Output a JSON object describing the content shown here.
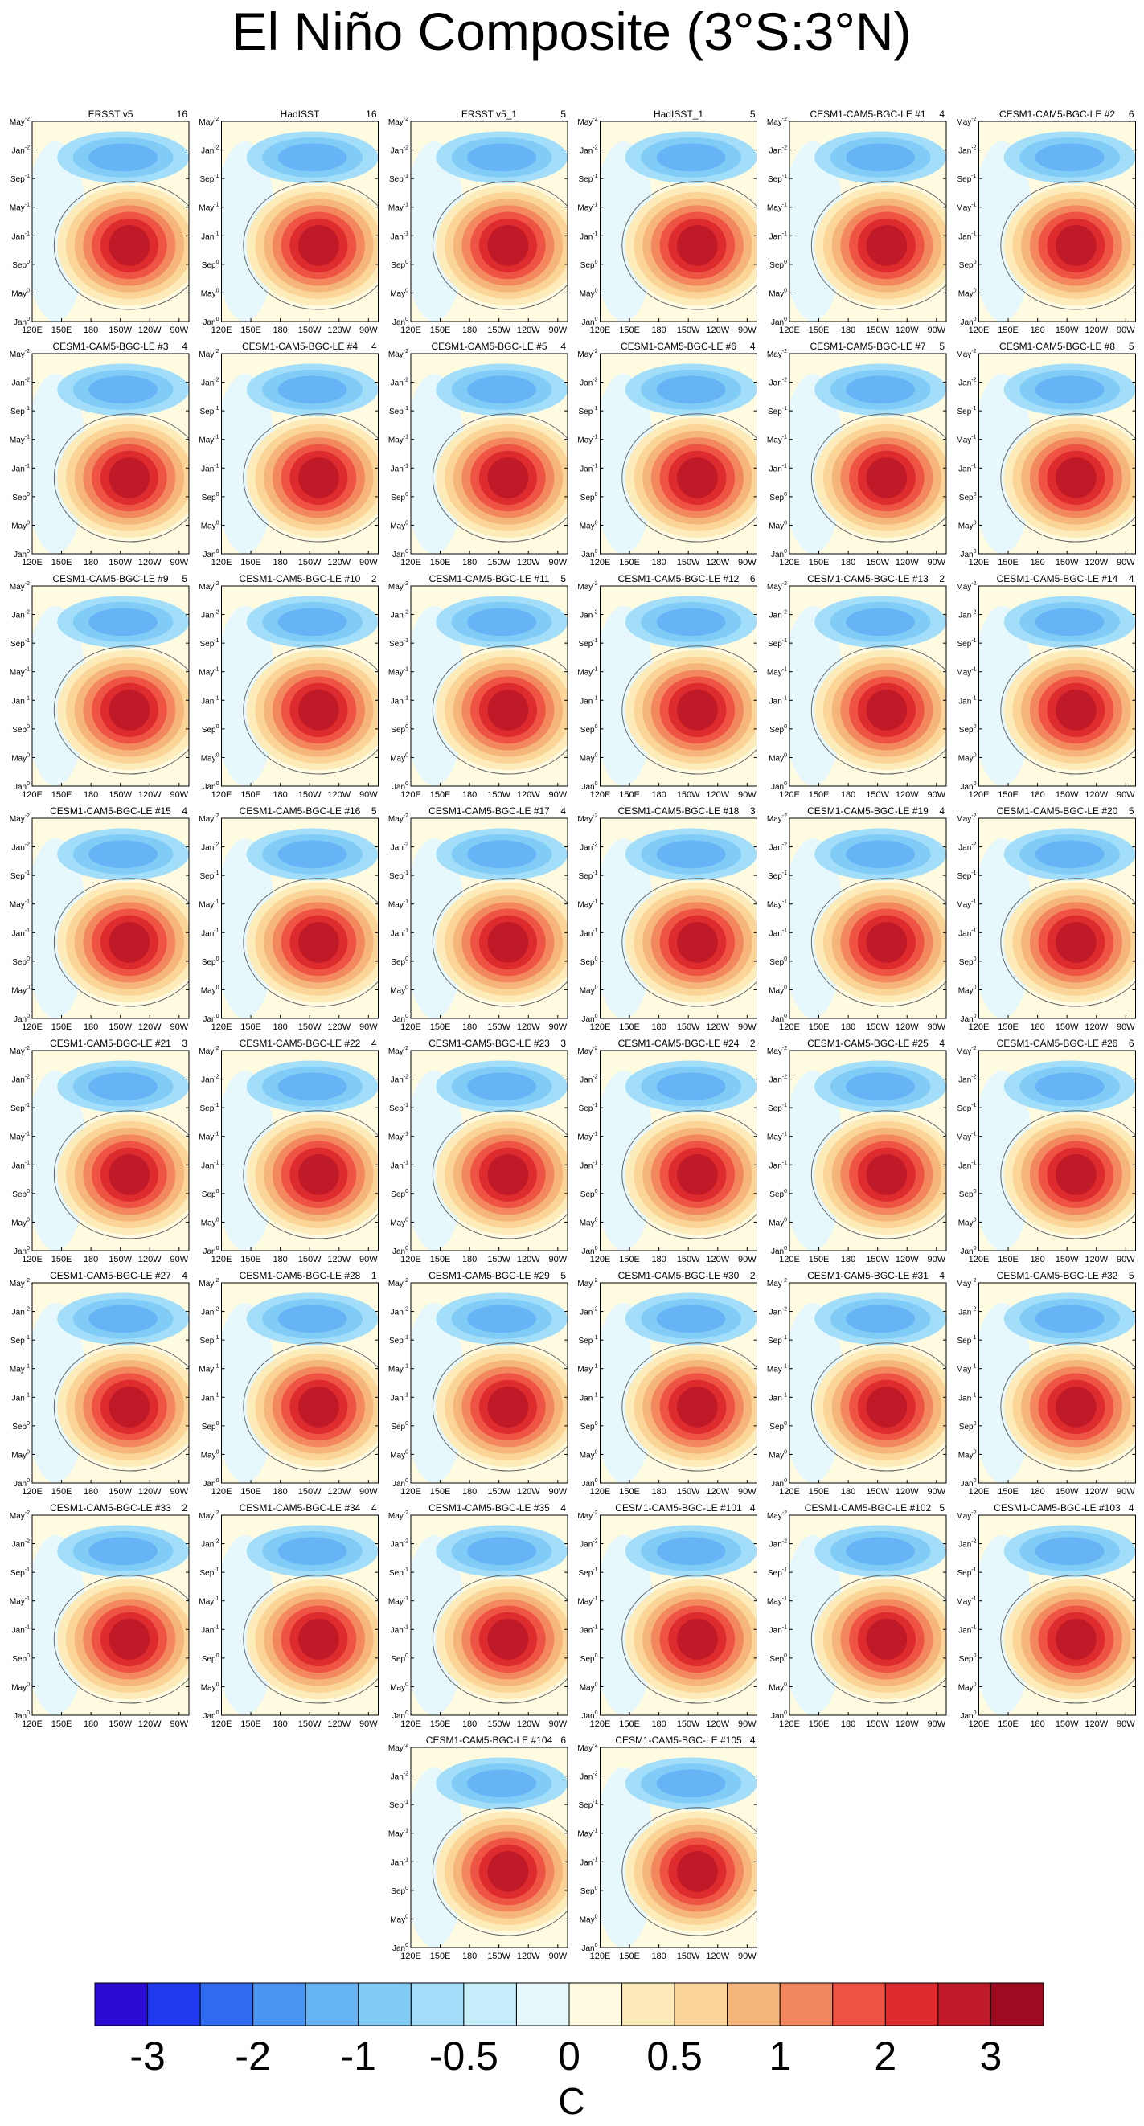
{
  "title": "El Niño Composite (3°S:3°N)",
  "panels": [
    {
      "title": "ERSST v5",
      "count": 16
    },
    {
      "title": "HadISST",
      "count": 16
    },
    {
      "title": "ERSST v5_1",
      "count": 5
    },
    {
      "title": "HadISST_1",
      "count": 5
    },
    {
      "title": "CESM1-CAM5-BGC-LE #1",
      "count": 4
    },
    {
      "title": "CESM1-CAM5-BGC-LE #2",
      "count": 6
    },
    {
      "title": "CESM1-CAM5-BGC-LE #3",
      "count": 4
    },
    {
      "title": "CESM1-CAM5-BGC-LE #4",
      "count": 4
    },
    {
      "title": "CESM1-CAM5-BGC-LE #5",
      "count": 4
    },
    {
      "title": "CESM1-CAM5-BGC-LE #6",
      "count": 4
    },
    {
      "title": "CESM1-CAM5-BGC-LE #7",
      "count": 5
    },
    {
      "title": "CESM1-CAM5-BGC-LE #8",
      "count": 5
    },
    {
      "title": "CESM1-CAM5-BGC-LE #9",
      "count": 5
    },
    {
      "title": "CESM1-CAM5-BGC-LE #10",
      "count": 2
    },
    {
      "title": "CESM1-CAM5-BGC-LE #11",
      "count": 5
    },
    {
      "title": "CESM1-CAM5-BGC-LE #12",
      "count": 6
    },
    {
      "title": "CESM1-CAM5-BGC-LE #13",
      "count": 2
    },
    {
      "title": "CESM1-CAM5-BGC-LE #14",
      "count": 4
    },
    {
      "title": "CESM1-CAM5-BGC-LE #15",
      "count": 4
    },
    {
      "title": "CESM1-CAM5-BGC-LE #16",
      "count": 5
    },
    {
      "title": "CESM1-CAM5-BGC-LE #17",
      "count": 4
    },
    {
      "title": "CESM1-CAM5-BGC-LE #18",
      "count": 3
    },
    {
      "title": "CESM1-CAM5-BGC-LE #19",
      "count": 4
    },
    {
      "title": "CESM1-CAM5-BGC-LE #20",
      "count": 5
    },
    {
      "title": "CESM1-CAM5-BGC-LE #21",
      "count": 3
    },
    {
      "title": "CESM1-CAM5-BGC-LE #22",
      "count": 4
    },
    {
      "title": "CESM1-CAM5-BGC-LE #23",
      "count": 3
    },
    {
      "title": "CESM1-CAM5-BGC-LE #24",
      "count": 2
    },
    {
      "title": "CESM1-CAM5-BGC-LE #25",
      "count": 4
    },
    {
      "title": "CESM1-CAM5-BGC-LE #26",
      "count": 6
    },
    {
      "title": "CESM1-CAM5-BGC-LE #27",
      "count": 4
    },
    {
      "title": "CESM1-CAM5-BGC-LE #28",
      "count": 1
    },
    {
      "title": "CESM1-CAM5-BGC-LE #29",
      "count": 5
    },
    {
      "title": "CESM1-CAM5-BGC-LE #30",
      "count": 2
    },
    {
      "title": "CESM1-CAM5-BGC-LE #31",
      "count": 4
    },
    {
      "title": "CESM1-CAM5-BGC-LE #32",
      "count": 5
    },
    {
      "title": "CESM1-CAM5-BGC-LE #33",
      "count": 2
    },
    {
      "title": "CESM1-CAM5-BGC-LE #34",
      "count": 4
    },
    {
      "title": "CESM1-CAM5-BGC-LE #35",
      "count": 4
    },
    {
      "title": "CESM1-CAM5-BGC-LE #101",
      "count": 4
    },
    {
      "title": "CESM1-CAM5-BGC-LE #102",
      "count": 5
    },
    {
      "title": "CESM1-CAM5-BGC-LE #103",
      "count": 4
    },
    {
      "title": "CESM1-CAM5-BGC-LE #104",
      "count": 6
    },
    {
      "title": "CESM1-CAM5-BGC-LE #105",
      "count": 4
    }
  ],
  "y_axis_labels": [
    {
      "month": "May",
      "year": "-2"
    },
    {
      "month": "Jan",
      "year": "-2"
    },
    {
      "month": "Sep",
      "year": "-1"
    },
    {
      "month": "May",
      "year": "-1"
    },
    {
      "month": "Jan",
      "year": "-1"
    },
    {
      "month": "Sep",
      "year": "0"
    },
    {
      "month": "May",
      "year": "0"
    },
    {
      "month": "Jan",
      "year": "0"
    }
  ],
  "x_axis_labels": [
    "120E",
    "150E",
    "180",
    "150W",
    "120W",
    "90W"
  ],
  "colorbar": {
    "colors": [
      "#2a0cd4",
      "#1f3aee",
      "#2f6cf2",
      "#4a95f2",
      "#66b4f5",
      "#80ccf7",
      "#a2def9",
      "#c6eefb",
      "#e6f8fb",
      "#fffbe0",
      "#fdebb9",
      "#fbd597",
      "#f6b57a",
      "#f3875d",
      "#ef5343",
      "#dd2b2e",
      "#c01a28",
      "#9e0a1f"
    ],
    "ticks": [
      -3,
      -2,
      -1,
      -0.5,
      0,
      0.5,
      1,
      2,
      3
    ],
    "units": "C"
  }
}
